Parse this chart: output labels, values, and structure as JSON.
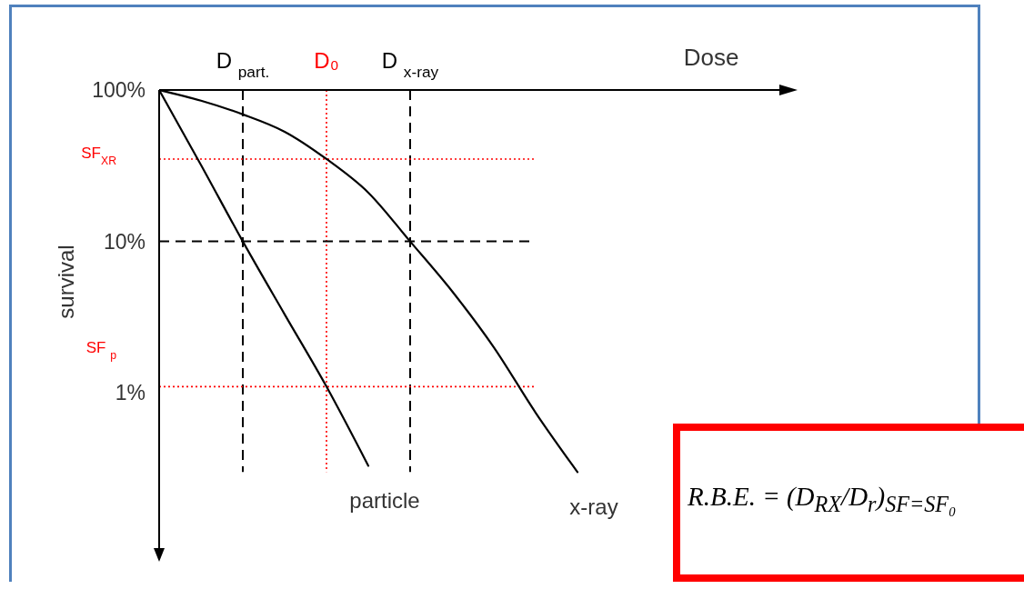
{
  "chart_data": {
    "type": "line",
    "xlabel": "Dose",
    "ylabel": "survival",
    "categories": [
      null,
      null,
      "D $_{part.}$",
      null,
      "D₀",
      null,
      "D $_{x-ray}$",
      null,
      null,
      null,
      null,
      null,
      null,
      null,
      null,
      null
    ],
    "series": [
      {
        "name": "particle",
        "color": "#000000",
        "values": [
          100,
          32,
          10,
          3.3,
          1.1,
          0.33,
          null,
          null,
          null,
          null,
          null,
          null,
          null,
          null,
          null,
          null
        ]
      },
      {
        "name": "x-ray",
        "color": "#000000",
        "values": [
          100,
          85,
          69,
          53,
          35,
          21,
          10,
          4.7,
          2,
          0.74,
          0.3,
          null,
          null,
          null,
          null,
          null
        ]
      }
    ],
    "log": "y",
    "ylim": [
      0.08,
      100
    ],
    "yticks": [
      {
        "value": 1,
        "label": "1%"
      },
      {
        "value": 10,
        "label": "10%"
      },
      {
        "value": 100,
        "label": "100%"
      }
    ],
    "ref_lines": [
      {
        "axis": "x",
        "value": "D $_{part.}$",
        "color": "#000000",
        "line_style": "dashed"
      },
      {
        "axis": "x",
        "value": "D₀",
        "color": "#ff0000",
        "line_style": "dotted"
      },
      {
        "axis": "x",
        "value": "D $_{x-ray}$",
        "color": "#000000",
        "line_style": "dashed"
      },
      {
        "axis": "y",
        "value": 10,
        "color": "#000000",
        "line_style": "dashed"
      },
      {
        "axis": "y",
        "value": 35,
        "label": "SF$_{XR}$",
        "color": "#ff0000",
        "line_style": "dotted"
      },
      {
        "axis": "y",
        "value": 1.1,
        "label": "SF $_{p}$",
        "color": "#ff0000",
        "line_style": "dotted"
      }
    ],
    "annotations": [
      "R.B.E. = (D$_{RX}$/D$_{r}$)$_{SF=SF₀}$"
    ],
    "marker": "none",
    "line_style": "solid"
  }
}
